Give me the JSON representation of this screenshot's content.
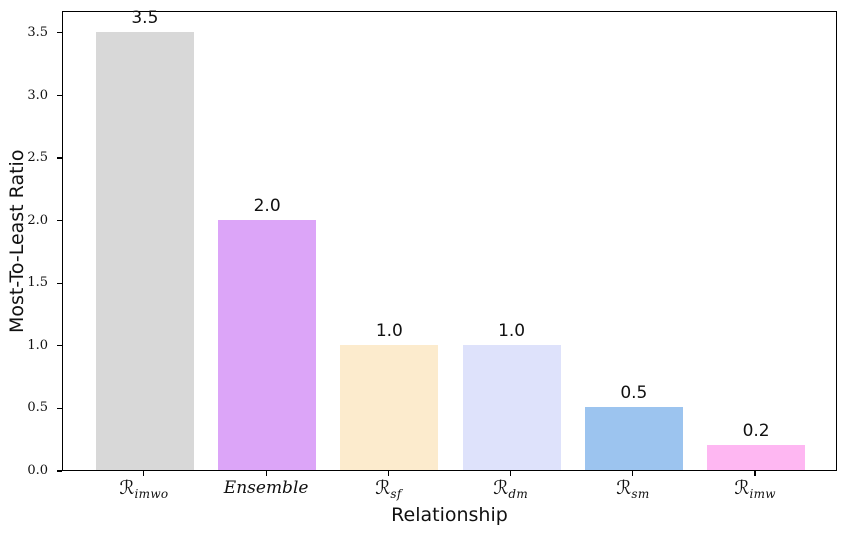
{
  "chart_data": {
    "type": "bar",
    "title": "",
    "xlabel": "Relationship",
    "ylabel": "Most-To-Least Ratio",
    "categories": [
      {
        "text": "R_imwo",
        "base": "ℛ",
        "sub": "imwo",
        "script": true
      },
      {
        "text": "Ensemble",
        "base": "Ensemble",
        "sub": "",
        "script": false
      },
      {
        "text": "R_sf",
        "base": "ℛ",
        "sub": "sf",
        "script": true
      },
      {
        "text": "R_dm",
        "base": "ℛ",
        "sub": "dm",
        "script": true
      },
      {
        "text": "R_sm",
        "base": "ℛ",
        "sub": "sm",
        "script": true
      },
      {
        "text": "R_imw",
        "base": "ℛ",
        "sub": "imw",
        "script": true
      }
    ],
    "values": [
      3.5,
      2.0,
      1.0,
      1.0,
      0.5,
      0.2
    ],
    "value_labels": [
      "3.5",
      "2.0",
      "1.0",
      "1.0",
      "0.5",
      "0.2"
    ],
    "bar_colors": [
      "#d8d8d8",
      "#dca5f8",
      "#fcebcd",
      "#dee2fb",
      "#9cc4ef",
      "#feb7f2"
    ],
    "ylim": [
      0,
      3.675
    ],
    "yticks": [
      0.0,
      0.5,
      1.0,
      1.5,
      2.0,
      2.5,
      3.0,
      3.5
    ],
    "ytick_labels": [
      "0.0",
      "0.5",
      "1.0",
      "1.5",
      "2.0",
      "2.5",
      "3.0",
      "3.5"
    ],
    "grid": false,
    "legend": null,
    "text_color": "#111111",
    "spine_color": "#000000"
  }
}
